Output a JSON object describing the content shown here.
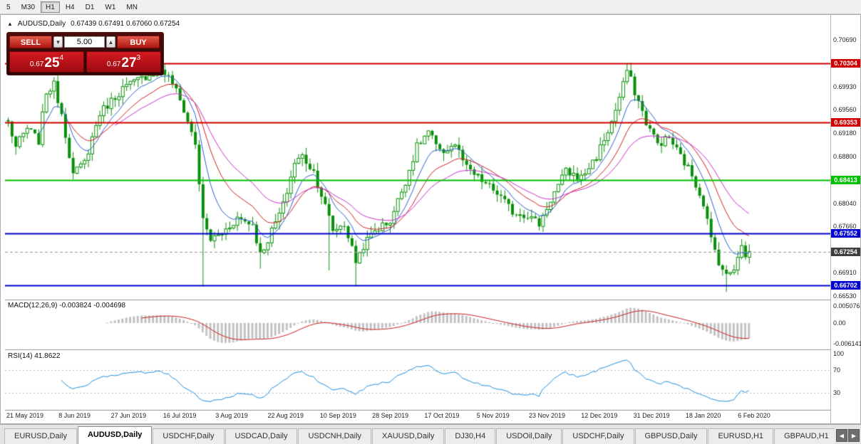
{
  "toolbar": {
    "timeframes": [
      "5",
      "M30",
      "H1",
      "H4",
      "D1",
      "W1",
      "MN"
    ],
    "active": "H1"
  },
  "chart": {
    "title": "AUDUSD,Daily",
    "ohlc": "0.67439 0.67491 0.67060 0.67254"
  },
  "one_click": {
    "sell_label": "SELL",
    "buy_label": "BUY",
    "volume": "5.00",
    "sell_price_prefix": "0.67",
    "sell_price_big": "25",
    "sell_price_sup": "4",
    "buy_price_prefix": "0.67",
    "buy_price_big": "27",
    "buy_price_sup": "3"
  },
  "price_axis": {
    "plain_labels": [
      "0.70690",
      "0.69930",
      "0.69560",
      "0.69180",
      "0.68800",
      "0.68040",
      "0.67660",
      "0.66910",
      "0.66530"
    ]
  },
  "indicators": {
    "macd_label": "MACD(12,26,9) -0.003824 -0.004698",
    "macd_axis": [
      "0.005076",
      "0.00",
      "-0.006141"
    ],
    "rsi_label": "RSI(14) 41.8622",
    "rsi_axis": [
      "100",
      "70",
      "30"
    ]
  },
  "date_axis": [
    "21 May 2019",
    "8 Jun 2019",
    "27 Jun 2019",
    "16 Jul 2019",
    "3 Aug 2019",
    "22 Aug 2019",
    "10 Sep 2019",
    "28 Sep 2019",
    "17 Oct 2019",
    "5 Nov 2019",
    "23 Nov 2019",
    "12 Dec 2019",
    "31 Dec 2019",
    "18 Jan 2020",
    "6 Feb 2020"
  ],
  "tabs": {
    "items": [
      "EURUSD,Daily",
      "AUDUSD,Daily",
      "USDCHF,Daily",
      "USDCAD,Daily",
      "USDCNH,Daily",
      "XAUUSD,Daily",
      "DJ30,H4",
      "USDOil,Daily",
      "USDCHF,Daily",
      "GBPUSD,Daily",
      "EURUSD,H1",
      "GBPAUD,H1"
    ],
    "active_index": 1
  },
  "chart_data": {
    "type": "candlestick",
    "symbol": "AUDUSD",
    "period": "Daily",
    "bars": 195,
    "ylim": [
      0.665,
      0.71
    ],
    "last_close": 0.67254,
    "close_waypoints": [
      [
        0,
        0.6935
      ],
      [
        2,
        0.6895
      ],
      [
        5,
        0.6925
      ],
      [
        8,
        0.6905
      ],
      [
        10,
        0.6985
      ],
      [
        12,
        0.6995
      ],
      [
        14,
        0.695
      ],
      [
        17,
        0.685
      ],
      [
        20,
        0.687
      ],
      [
        24,
        0.695
      ],
      [
        30,
        0.699
      ],
      [
        36,
        0.701
      ],
      [
        40,
        0.7022
      ],
      [
        43,
        0.7
      ],
      [
        46,
        0.6955
      ],
      [
        49,
        0.69
      ],
      [
        51,
        0.6775
      ],
      [
        53,
        0.6745
      ],
      [
        56,
        0.6755
      ],
      [
        60,
        0.678
      ],
      [
        64,
        0.677
      ],
      [
        66,
        0.672
      ],
      [
        68,
        0.6745
      ],
      [
        72,
        0.68
      ],
      [
        75,
        0.687
      ],
      [
        77,
        0.688
      ],
      [
        80,
        0.6855
      ],
      [
        84,
        0.678
      ],
      [
        85,
        0.676
      ],
      [
        88,
        0.677
      ],
      [
        91,
        0.671
      ],
      [
        93,
        0.6735
      ],
      [
        96,
        0.676
      ],
      [
        100,
        0.6775
      ],
      [
        104,
        0.684
      ],
      [
        107,
        0.6895
      ],
      [
        110,
        0.692
      ],
      [
        113,
        0.6885
      ],
      [
        117,
        0.69
      ],
      [
        120,
        0.686
      ],
      [
        124,
        0.684
      ],
      [
        128,
        0.682
      ],
      [
        132,
        0.679
      ],
      [
        136,
        0.6785
      ],
      [
        139,
        0.677
      ],
      [
        142,
        0.681
      ],
      [
        146,
        0.6855
      ],
      [
        150,
        0.6845
      ],
      [
        154,
        0.688
      ],
      [
        158,
        0.6935
      ],
      [
        161,
        0.6995
      ],
      [
        162,
        0.702
      ],
      [
        164,
        0.6985
      ],
      [
        167,
        0.6935
      ],
      [
        170,
        0.69
      ],
      [
        173,
        0.691
      ],
      [
        176,
        0.688
      ],
      [
        179,
        0.685
      ],
      [
        182,
        0.6805
      ],
      [
        184,
        0.6745
      ],
      [
        186,
        0.671
      ],
      [
        188,
        0.6685
      ],
      [
        190,
        0.67
      ],
      [
        192,
        0.674
      ],
      [
        193,
        0.6715
      ],
      [
        194,
        0.67254
      ]
    ],
    "wick_lows": [
      [
        51,
        0.667
      ],
      [
        66,
        0.6698
      ],
      [
        84,
        0.6695
      ],
      [
        91,
        0.667
      ],
      [
        188,
        0.666
      ]
    ],
    "wick_highs": [
      [
        40,
        0.7026
      ],
      [
        162,
        0.7031
      ]
    ],
    "horizontal_levels": [
      {
        "price": 0.70304,
        "color": "#d00000"
      },
      {
        "price": 0.69353,
        "color": "#d00000"
      },
      {
        "price": 0.68413,
        "color": "#00c000"
      },
      {
        "price": 0.67552,
        "color": "#0000d0"
      },
      {
        "price": 0.66702,
        "color": "#0000d0"
      }
    ],
    "current_price": {
      "value": 0.67254,
      "badge_color": "#3f3f3f"
    },
    "candle_up_color": "#0a8f0a",
    "candle_down_color": "#0a8f0a",
    "moving_averages": [
      {
        "period": 8,
        "color": "#2f5fd0"
      },
      {
        "period": 16,
        "color": "#d02020"
      },
      {
        "period": 28,
        "color": "#cc30cc"
      }
    ],
    "macd": {
      "fast": 12,
      "slow": 26,
      "signal": 9,
      "range": [
        -0.0075,
        0.0062
      ],
      "histogram_color": "#c2c2c2",
      "signal_color": "#cc2020"
    },
    "rsi": {
      "period": 14,
      "color": "#2090e0",
      "levels": [
        70,
        30
      ],
      "level_color": "#bbbbbb"
    }
  }
}
